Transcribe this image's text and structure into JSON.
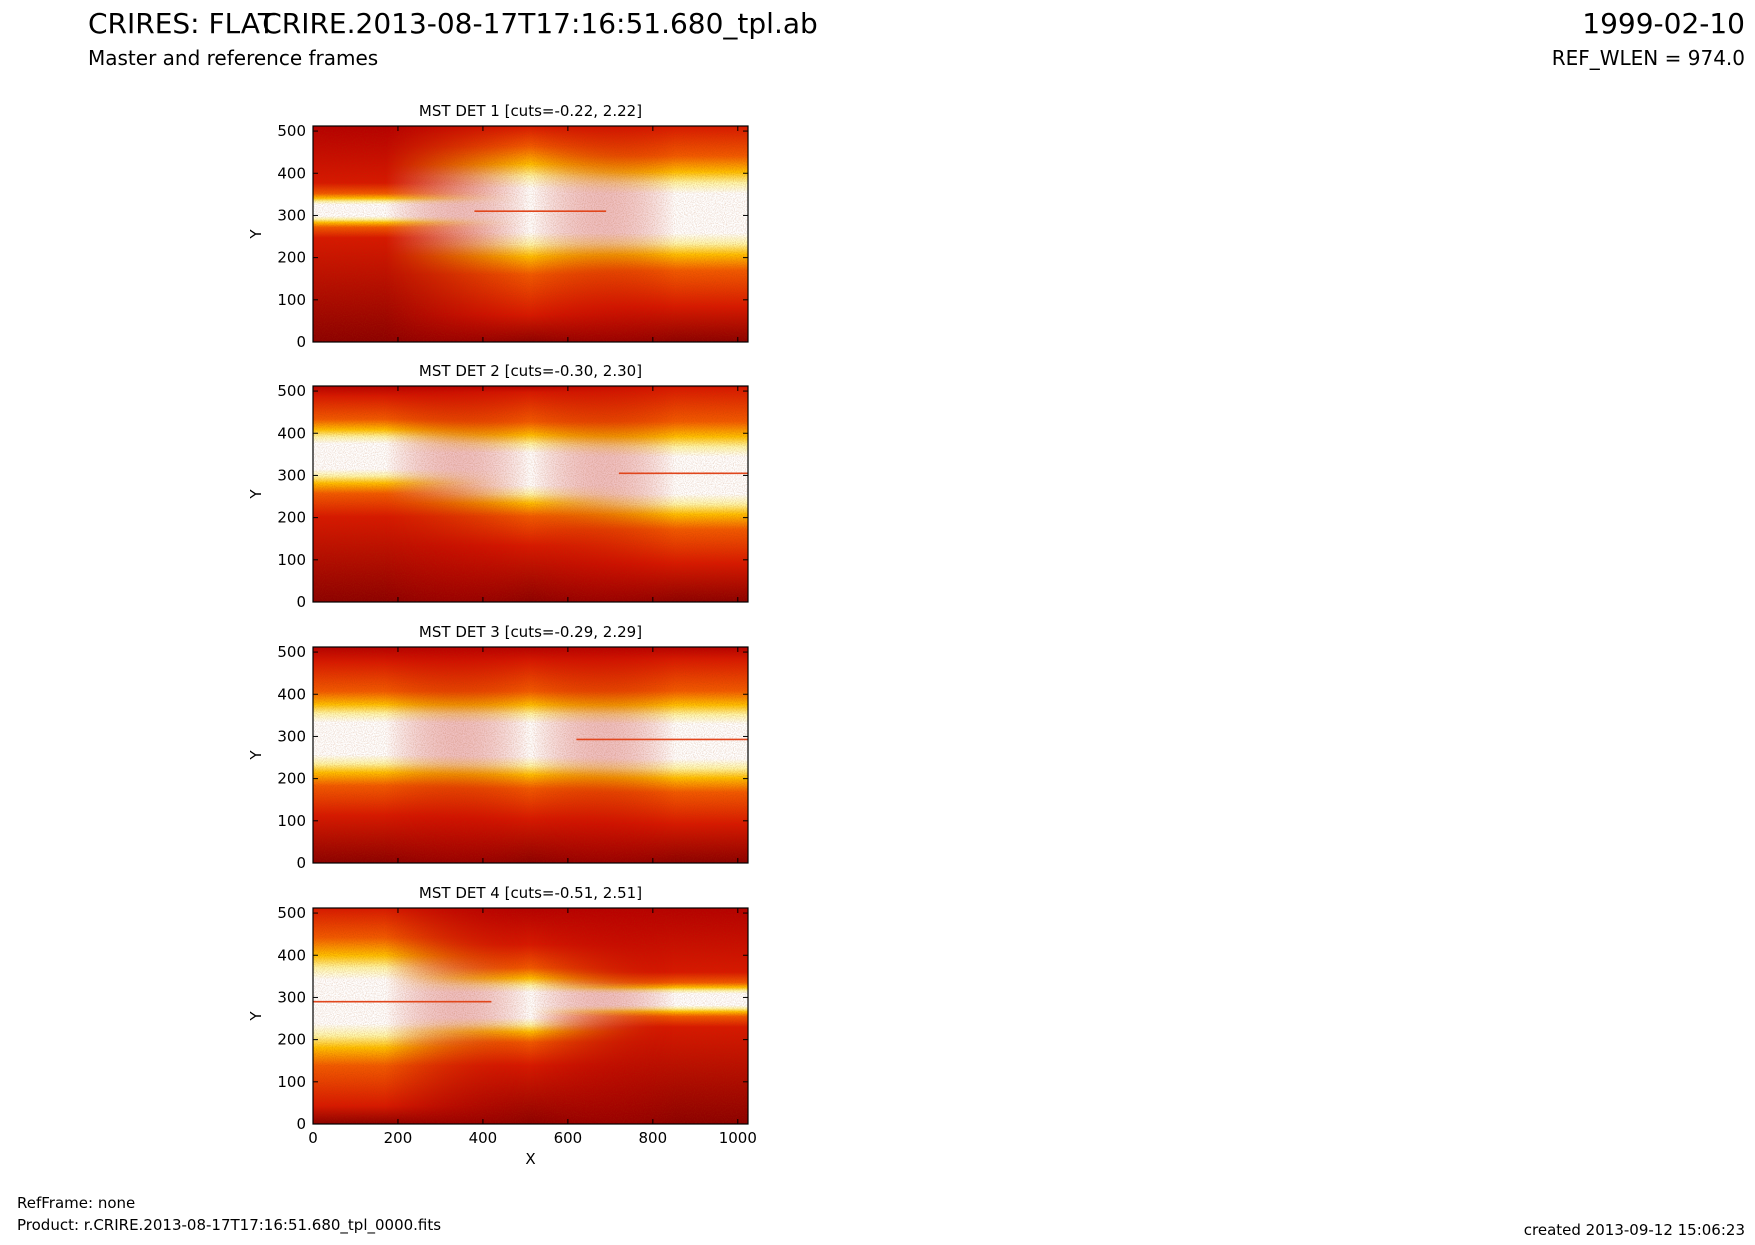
{
  "header": {
    "left_title": "CRIRES: FLAT",
    "left_subtitle": "Master and reference frames",
    "center_title": "CRIRE.2013-08-17T17:16:51.680_tpl.ab",
    "right_title": "1999-02-10",
    "right_subtitle": "REF_WLEN = 974.0"
  },
  "footer": {
    "ref_frame": "RefFrame: none",
    "product": "Product: r.CRIRE.2013-08-17T17:16:51.680_tpl_0000.fits",
    "created": "created 2013-09-12 15:06:23"
  },
  "chart_data": [
    {
      "type": "heatmap",
      "title": "MST DET 1 [cuts=-0.22, 2.22]",
      "ylabel": "Y",
      "xlabel": "",
      "xlim": [
        0,
        1024
      ],
      "ylim": [
        0,
        512
      ],
      "xticks": [
        0,
        200,
        400,
        600,
        800,
        1000
      ],
      "yticks": [
        0,
        100,
        200,
        300,
        400,
        500
      ],
      "show_xtick_labels": false,
      "colormap": "hot",
      "cuts": [
        -0.22,
        2.22
      ],
      "band_center": [
        312,
        312,
        305
      ],
      "band_halfwidth": [
        25,
        95,
        85
      ],
      "streaks": [
        {
          "x0": 380,
          "x1": 690,
          "y": 310,
          "color": "#e0461c"
        }
      ]
    },
    {
      "type": "heatmap",
      "title": "MST DET 2 [cuts=-0.30, 2.30]",
      "ylabel": "Y",
      "xlabel": "",
      "xlim": [
        0,
        1024
      ],
      "ylim": [
        0,
        512
      ],
      "xticks": [
        0,
        200,
        400,
        600,
        800,
        1000
      ],
      "yticks": [
        0,
        100,
        200,
        300,
        400,
        500
      ],
      "show_xtick_labels": false,
      "colormap": "hot",
      "cuts": [
        -0.3,
        2.3
      ],
      "band_center": [
        345,
        315,
        300
      ],
      "band_halfwidth": [
        55,
        70,
        80
      ],
      "streaks": [
        {
          "x0": 720,
          "x1": 1024,
          "y": 305,
          "color": "#e0461c"
        }
      ]
    },
    {
      "type": "heatmap",
      "title": "MST DET 3 [cuts=-0.29, 2.29]",
      "ylabel": "Y",
      "xlabel": "",
      "xlim": [
        0,
        1024
      ],
      "ylim": [
        0,
        512
      ],
      "xticks": [
        0,
        200,
        400,
        600,
        800,
        1000
      ],
      "yticks": [
        0,
        100,
        200,
        300,
        400,
        500
      ],
      "show_xtick_labels": false,
      "colormap": "hot",
      "cuts": [
        -0.29,
        2.29
      ],
      "band_center": [
        295,
        292,
        288
      ],
      "band_halfwidth": [
        70,
        72,
        75
      ],
      "streaks": [
        {
          "x0": 620,
          "x1": 1024,
          "y": 293,
          "color": "#e0461c"
        }
      ]
    },
    {
      "type": "heatmap",
      "title": "MST DET 4 [cuts=-0.51, 2.51]",
      "ylabel": "Y",
      "xlabel": "X",
      "xlim": [
        0,
        1024
      ],
      "ylim": [
        0,
        512
      ],
      "xticks": [
        0,
        200,
        400,
        600,
        800,
        1000
      ],
      "yticks": [
        0,
        100,
        200,
        300,
        400,
        500
      ],
      "show_xtick_labels": true,
      "colormap": "hot",
      "cuts": [
        -0.51,
        2.51
      ],
      "band_center": [
        290,
        282,
        295
      ],
      "band_halfwidth": [
        95,
        55,
        25
      ],
      "streaks": [
        {
          "x0": 0,
          "x1": 420,
          "y": 290,
          "color": "#e0461c"
        }
      ]
    }
  ]
}
